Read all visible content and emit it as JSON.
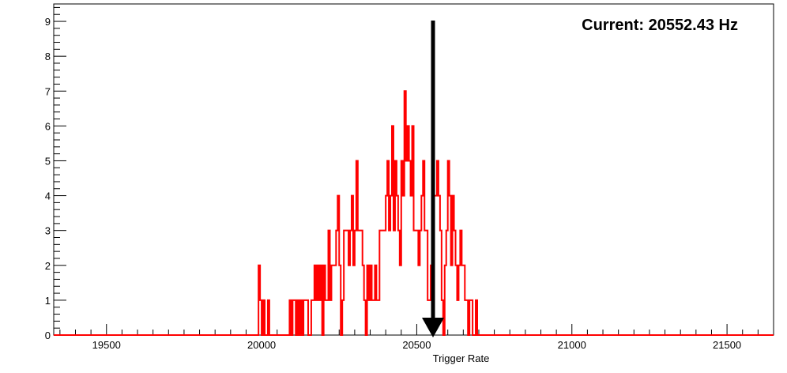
{
  "chart_data": {
    "type": "histogram",
    "title": "",
    "xlabel": "Trigger Rate",
    "ylabel": "",
    "xlim": [
      19330,
      21650
    ],
    "ylim": [
      0,
      9.5
    ],
    "bin_width": 5,
    "x_ticks_major": [
      19500,
      20000,
      20500,
      21000,
      21500
    ],
    "x_tick_labels": [
      "19500",
      "20000",
      "20500",
      "21000",
      "21500"
    ],
    "y_ticks_major": [
      0,
      1,
      2,
      3,
      4,
      5,
      6,
      7,
      8,
      9
    ],
    "y_tick_labels": [
      "0",
      "1",
      "2",
      "3",
      "4",
      "5",
      "6",
      "7",
      "8",
      "9"
    ],
    "grid": false,
    "series": [
      {
        "color": "#ff0000",
        "bins": [
          [
            19990,
            2
          ],
          [
            19995,
            1
          ],
          [
            20000,
            0
          ],
          [
            20005,
            1
          ],
          [
            20010,
            0
          ],
          [
            20015,
            0
          ],
          [
            20020,
            1
          ],
          [
            20025,
            0
          ],
          [
            20030,
            0
          ],
          [
            20035,
            0
          ],
          [
            20040,
            0
          ],
          [
            20045,
            0
          ],
          [
            20050,
            0
          ],
          [
            20055,
            0
          ],
          [
            20060,
            0
          ],
          [
            20065,
            0
          ],
          [
            20070,
            0
          ],
          [
            20075,
            0
          ],
          [
            20080,
            0
          ],
          [
            20085,
            0
          ],
          [
            20090,
            1
          ],
          [
            20095,
            0
          ],
          [
            20100,
            1
          ],
          [
            20105,
            1
          ],
          [
            20110,
            0
          ],
          [
            20115,
            1
          ],
          [
            20120,
            0
          ],
          [
            20125,
            1
          ],
          [
            20130,
            0
          ],
          [
            20135,
            1
          ],
          [
            20140,
            1
          ],
          [
            20145,
            1
          ],
          [
            20150,
            0
          ],
          [
            20155,
            0
          ],
          [
            20160,
            1
          ],
          [
            20165,
            1
          ],
          [
            20170,
            2
          ],
          [
            20175,
            1
          ],
          [
            20180,
            2
          ],
          [
            20185,
            1
          ],
          [
            20190,
            2
          ],
          [
            20195,
            0
          ],
          [
            20200,
            2
          ],
          [
            20205,
            1
          ],
          [
            20210,
            1
          ],
          [
            20215,
            3
          ],
          [
            20220,
            1
          ],
          [
            20225,
            2
          ],
          [
            20230,
            2
          ],
          [
            20235,
            2
          ],
          [
            20240,
            3
          ],
          [
            20245,
            4
          ],
          [
            20250,
            2
          ],
          [
            20255,
            0
          ],
          [
            20260,
            1
          ],
          [
            20265,
            3
          ],
          [
            20270,
            3
          ],
          [
            20275,
            3
          ],
          [
            20280,
            2
          ],
          [
            20285,
            3
          ],
          [
            20290,
            4
          ],
          [
            20295,
            2
          ],
          [
            20300,
            3
          ],
          [
            20305,
            5
          ],
          [
            20310,
            3
          ],
          [
            20315,
            3
          ],
          [
            20320,
            3
          ],
          [
            20325,
            2
          ],
          [
            20330,
            1
          ],
          [
            20335,
            0
          ],
          [
            20340,
            2
          ],
          [
            20345,
            1
          ],
          [
            20350,
            2
          ],
          [
            20355,
            1
          ],
          [
            20360,
            1
          ],
          [
            20365,
            2
          ],
          [
            20370,
            1
          ],
          [
            20375,
            1
          ],
          [
            20380,
            3
          ],
          [
            20385,
            3
          ],
          [
            20390,
            3
          ],
          [
            20395,
            3
          ],
          [
            20400,
            4
          ],
          [
            20405,
            5
          ],
          [
            20410,
            3
          ],
          [
            20415,
            4
          ],
          [
            20420,
            6
          ],
          [
            20425,
            3
          ],
          [
            20430,
            5
          ],
          [
            20435,
            4
          ],
          [
            20440,
            3
          ],
          [
            20445,
            2
          ],
          [
            20450,
            5
          ],
          [
            20455,
            4
          ],
          [
            20460,
            7
          ],
          [
            20465,
            5
          ],
          [
            20470,
            6
          ],
          [
            20475,
            5
          ],
          [
            20480,
            4
          ],
          [
            20485,
            6
          ],
          [
            20490,
            3
          ],
          [
            20495,
            3
          ],
          [
            20500,
            3
          ],
          [
            20505,
            2
          ],
          [
            20510,
            3
          ],
          [
            20515,
            4
          ],
          [
            20520,
            5
          ],
          [
            20525,
            3
          ],
          [
            20530,
            3
          ],
          [
            20535,
            1
          ],
          [
            20540,
            1
          ],
          [
            20545,
            2
          ],
          [
            20550,
            3
          ],
          [
            20555,
            4
          ],
          [
            20560,
            4
          ],
          [
            20565,
            5
          ],
          [
            20570,
            4
          ],
          [
            20575,
            3
          ],
          [
            20580,
            1
          ],
          [
            20585,
            0
          ],
          [
            20590,
            2
          ],
          [
            20595,
            3
          ],
          [
            20600,
            5
          ],
          [
            20605,
            4
          ],
          [
            20610,
            2
          ],
          [
            20615,
            4
          ],
          [
            20620,
            3
          ],
          [
            20625,
            2
          ],
          [
            20630,
            1
          ],
          [
            20635,
            2
          ],
          [
            20640,
            3
          ],
          [
            20645,
            2
          ],
          [
            20650,
            2
          ],
          [
            20655,
            1
          ],
          [
            20660,
            1
          ],
          [
            20665,
            0
          ],
          [
            20670,
            1
          ],
          [
            20675,
            1
          ],
          [
            20680,
            0
          ],
          [
            20685,
            0
          ],
          [
            20690,
            1
          ]
        ]
      }
    ],
    "marker": {
      "x": 20552.43,
      "type": "arrow-down",
      "color": "#000000"
    },
    "annotations": [
      {
        "text": "Current: 20552.43 Hz",
        "position": "top-right"
      }
    ],
    "axis_color": "#000000",
    "frame_color": "#000000"
  }
}
